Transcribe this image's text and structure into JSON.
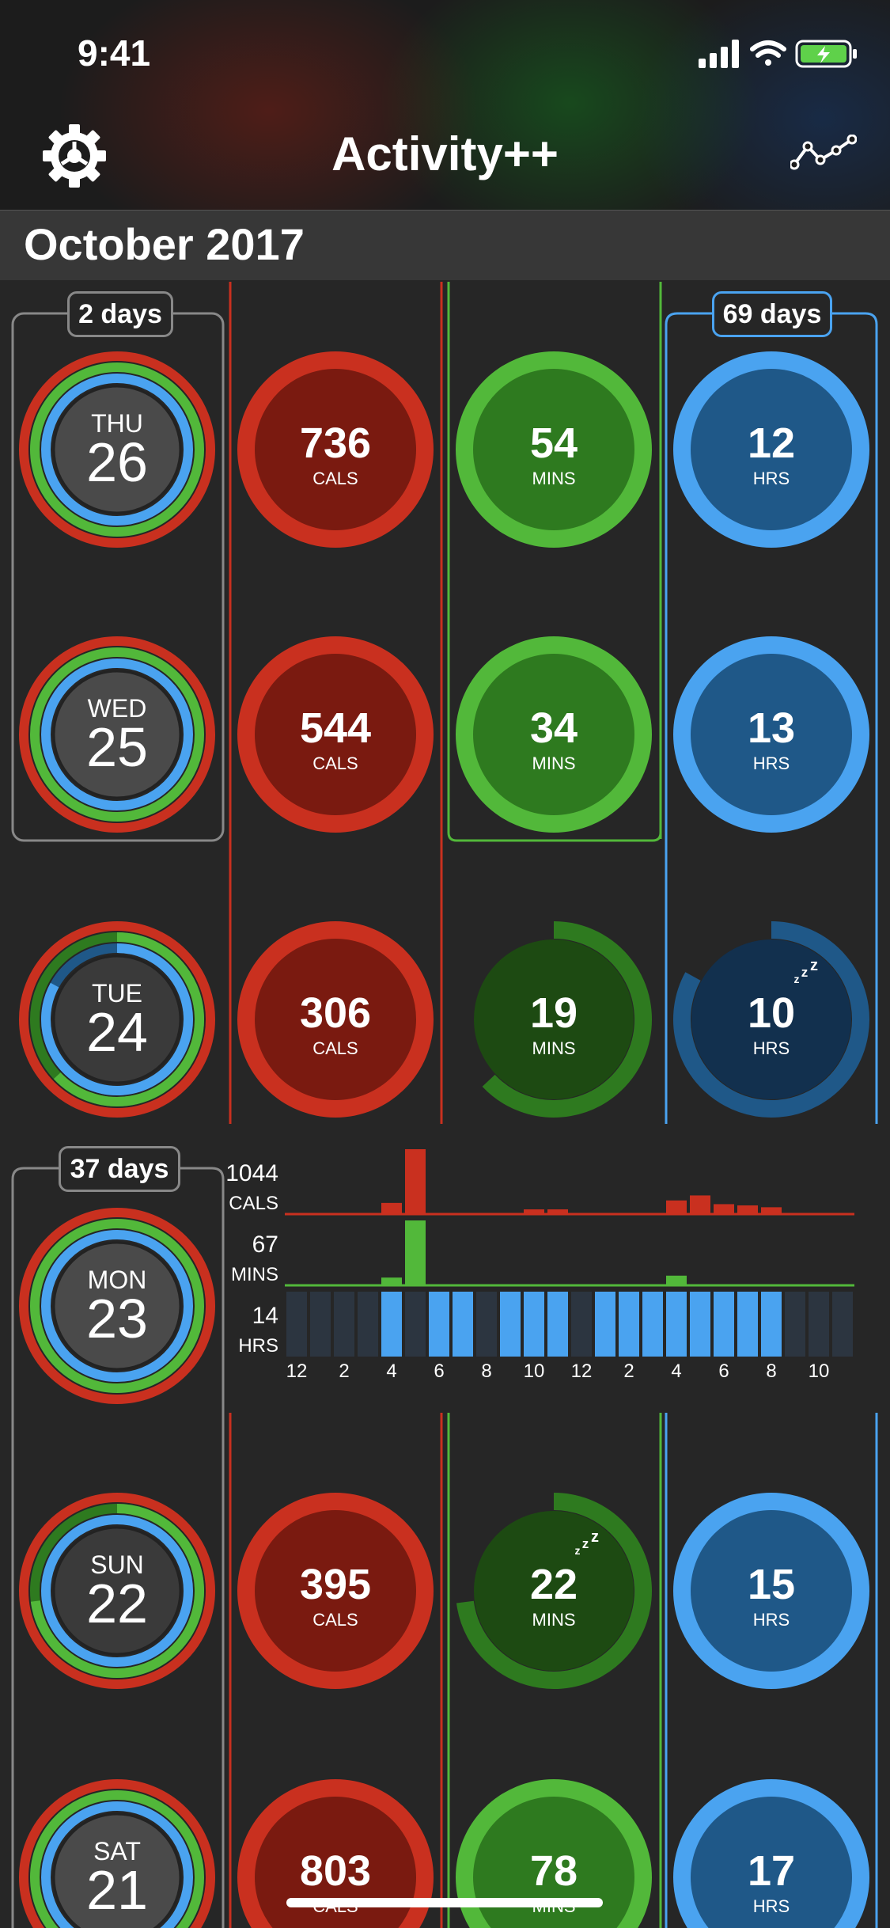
{
  "status_bar": {
    "time": "9:41"
  },
  "header": {
    "title": "Activity++",
    "settings_icon": "gear-icon",
    "trends_icon": "trend-line-icon"
  },
  "section": {
    "month": "October 2017"
  },
  "colors": {
    "move": "#c9301f",
    "move_dark": "#7a1a10",
    "exercise": "#52b83a",
    "exercise_dark": "#2e7a1f",
    "stand": "#4aa3f0",
    "stand_dark": "#1f5888"
  },
  "streaks": {
    "week1_days": "2 days",
    "stand_days": "69 days",
    "week2_days": "37 days"
  },
  "days": [
    {
      "weekday": "THU",
      "date": "26",
      "cals": "736",
      "cals_unit": "CALS",
      "mins": "54",
      "mins_unit": "MINS",
      "hrs": "12",
      "hrs_unit": "HRS",
      "move_pct": 1.0,
      "exercise_pct": 1.0,
      "stand_pct": 1.0
    },
    {
      "weekday": "WED",
      "date": "25",
      "cals": "544",
      "cals_unit": "CALS",
      "mins": "34",
      "mins_unit": "MINS",
      "hrs": "13",
      "hrs_unit": "HRS",
      "move_pct": 1.0,
      "exercise_pct": 1.0,
      "stand_pct": 1.0
    },
    {
      "weekday": "TUE",
      "date": "24",
      "cals": "306",
      "cals_unit": "CALS",
      "mins": "19",
      "mins_unit": "MINS",
      "hrs": "10",
      "hrs_unit": "HRS",
      "move_pct": 1.0,
      "exercise_pct": 0.63,
      "stand_pct": 0.83
    },
    {
      "weekday": "MON",
      "date": "23",
      "move_pct": 1.0,
      "exercise_pct": 1.0,
      "stand_pct": 1.0
    },
    {
      "weekday": "SUN",
      "date": "22",
      "cals": "395",
      "cals_unit": "CALS",
      "mins": "22",
      "mins_unit": "MINS",
      "hrs": "15",
      "hrs_unit": "HRS",
      "move_pct": 1.0,
      "exercise_pct": 0.73,
      "stand_pct": 1.0
    },
    {
      "weekday": "SAT",
      "date": "21",
      "cals": "803",
      "cals_unit": "CALS",
      "mins": "78",
      "mins_unit": "MINS",
      "hrs": "17",
      "hrs_unit": "HRS",
      "move_pct": 1.0,
      "exercise_pct": 1.0,
      "stand_pct": 1.0
    }
  ],
  "chart_data": {
    "type": "bar",
    "title": "",
    "x_ticks": [
      "12",
      "2",
      "4",
      "6",
      "8",
      "10",
      "12",
      "2",
      "4",
      "6",
      "8",
      "10"
    ],
    "series": [
      {
        "name": "CALS",
        "max_label": "1044",
        "unit_label": "CALS",
        "values": [
          0,
          0,
          0,
          0,
          180,
          1044,
          0,
          0,
          0,
          0,
          30,
          40,
          0,
          0,
          0,
          0,
          220,
          300,
          160,
          140,
          110,
          0,
          0,
          0,
          0
        ]
      },
      {
        "name": "MINS",
        "max_label": "67",
        "unit_label": "MINS",
        "values": [
          0,
          0,
          0,
          0,
          8,
          67,
          0,
          0,
          0,
          0,
          0,
          0,
          0,
          0,
          0,
          0,
          10,
          0,
          0,
          0,
          0,
          0,
          0,
          0,
          0
        ]
      },
      {
        "name": "HRS",
        "max_label": "14",
        "unit_label": "HRS",
        "values": [
          0,
          0,
          0,
          0,
          1,
          0,
          1,
          1,
          0,
          1,
          1,
          1,
          0,
          1,
          1,
          1,
          1,
          1,
          1,
          1,
          1,
          0,
          0,
          0,
          0
        ]
      }
    ]
  }
}
